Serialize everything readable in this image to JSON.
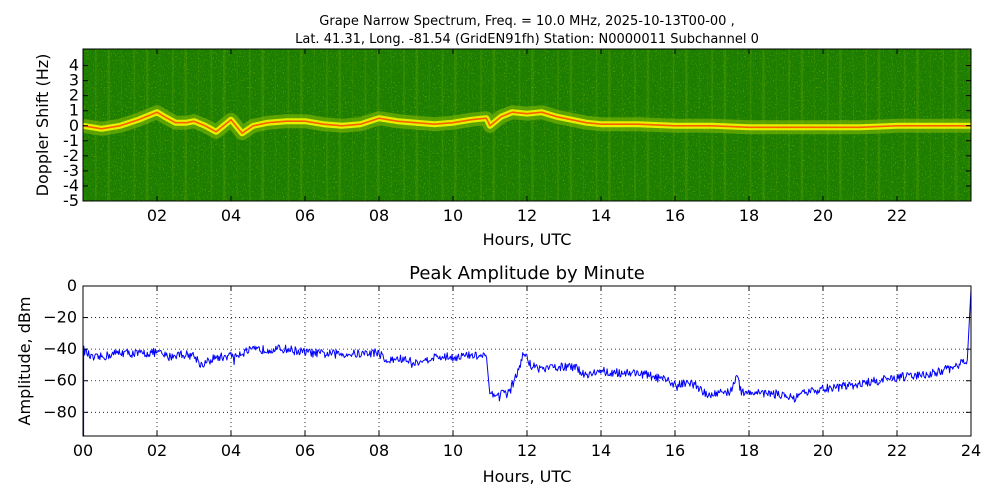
{
  "figure": {
    "title_line1": "Grape Narrow Spectrum, Freq. = 10.0 MHz, 2025-10-13T00-00 ,",
    "title_line2": "Lat.  41.31, Long. -81.54 (GridEN91fh) Station: N0000011 Subchannel 0"
  },
  "chart_data": [
    {
      "type": "heatmap",
      "title": "",
      "xlabel": "Hours, UTC",
      "ylabel": "Doppler Shift (Hz)",
      "xlim": [
        0,
        24
      ],
      "ylim": [
        -5,
        5
      ],
      "x_ticks": [
        2,
        4,
        6,
        8,
        10,
        12,
        14,
        16,
        18,
        20,
        22
      ],
      "x_tick_labels": [
        "02",
        "04",
        "06",
        "08",
        "10",
        "12",
        "14",
        "16",
        "18",
        "20",
        "22"
      ],
      "y_ticks": [
        4,
        3,
        2,
        1,
        0,
        -1,
        -2,
        -3,
        -4,
        -5
      ],
      "y_tick_labels": [
        "4",
        "3",
        "2",
        "1",
        "0",
        "-1",
        "-2",
        "-3",
        "-4",
        "-5"
      ],
      "grid": false,
      "colormap": [
        "#006400",
        "#2f8a00",
        "#8cc000",
        "#ffff00",
        "#ff3000"
      ],
      "doppler_trace": {
        "x": [
          0.0,
          0.5,
          1.0,
          1.5,
          1.8,
          2.0,
          2.2,
          2.5,
          2.8,
          3.0,
          3.3,
          3.6,
          4.0,
          4.3,
          4.6,
          5.0,
          5.5,
          6.0,
          6.5,
          7.0,
          7.5,
          8.0,
          8.5,
          9.0,
          9.5,
          10.0,
          10.5,
          10.9,
          11.0,
          11.3,
          11.6,
          12.0,
          12.4,
          12.8,
          13.2,
          13.6,
          14.0,
          15.0,
          16.0,
          17.0,
          18.0,
          19.0,
          20.0,
          21.0,
          22.0,
          23.0,
          24.0
        ],
        "y": [
          0.0,
          -0.2,
          0.0,
          0.4,
          0.7,
          0.9,
          0.6,
          0.2,
          0.2,
          0.3,
          0.0,
          -0.4,
          0.4,
          -0.5,
          0.0,
          0.2,
          0.3,
          0.3,
          0.1,
          0.0,
          0.1,
          0.5,
          0.3,
          0.2,
          0.1,
          0.2,
          0.4,
          0.5,
          0.0,
          0.6,
          0.9,
          0.8,
          0.9,
          0.6,
          0.4,
          0.2,
          0.1,
          0.1,
          0.0,
          0.0,
          -0.1,
          -0.1,
          -0.1,
          -0.1,
          0.0,
          0.0,
          0.0
        ]
      }
    },
    {
      "type": "line",
      "title": "Peak Amplitude by Minute",
      "xlabel": "Hours, UTC",
      "ylabel": "Amplitude, dBm",
      "xlim": [
        0,
        24
      ],
      "ylim": [
        -95,
        0
      ],
      "x_ticks": [
        0,
        2,
        4,
        6,
        8,
        10,
        12,
        14,
        16,
        18,
        20,
        22,
        24
      ],
      "x_tick_labels": [
        "00",
        "02",
        "04",
        "06",
        "08",
        "10",
        "12",
        "14",
        "16",
        "18",
        "20",
        "22",
        "24"
      ],
      "y_ticks": [
        0,
        -20,
        -40,
        -60,
        -80
      ],
      "y_tick_labels": [
        "0",
        "−20",
        "−40",
        "−60",
        "−80"
      ],
      "grid": true,
      "line_color": "#0000ff",
      "series": [
        {
          "x": [
            0.0,
            0.25,
            0.5,
            1.0,
            1.5,
            2.0,
            2.3,
            2.6,
            3.0,
            3.2,
            3.5,
            4.0,
            4.5,
            5.0,
            5.5,
            6.0,
            6.5,
            7.0,
            7.5,
            8.0,
            8.2,
            8.5,
            9.0,
            9.5,
            10.0,
            10.5,
            10.9,
            11.0,
            11.2,
            11.5,
            11.8,
            11.9,
            12.1,
            12.3,
            12.6,
            13.0,
            13.3,
            13.6,
            14.0,
            14.5,
            15.0,
            15.5,
            16.0,
            16.5,
            16.9,
            17.2,
            17.5,
            17.65,
            17.8,
            18.0,
            18.5,
            19.0,
            19.2,
            19.5,
            20.0,
            20.5,
            21.0,
            21.5,
            22.0,
            22.5,
            23.0,
            23.5,
            23.9,
            24.0
          ],
          "y": [
            -40,
            -46,
            -45,
            -42,
            -43,
            -42,
            -45,
            -43,
            -44,
            -50,
            -46,
            -44,
            -41,
            -40,
            -40,
            -42,
            -43,
            -43,
            -43,
            -42,
            -48,
            -46,
            -48,
            -45,
            -45,
            -44,
            -45,
            -67,
            -69,
            -68,
            -52,
            -42,
            -50,
            -52,
            -52,
            -51,
            -52,
            -56,
            -54,
            -55,
            -55,
            -58,
            -62,
            -62,
            -70,
            -67,
            -67,
            -57,
            -67,
            -67,
            -68,
            -69,
            -72,
            -68,
            -65,
            -64,
            -62,
            -60,
            -58,
            -57,
            -55,
            -52,
            -47,
            -2
          ]
        }
      ]
    }
  ]
}
